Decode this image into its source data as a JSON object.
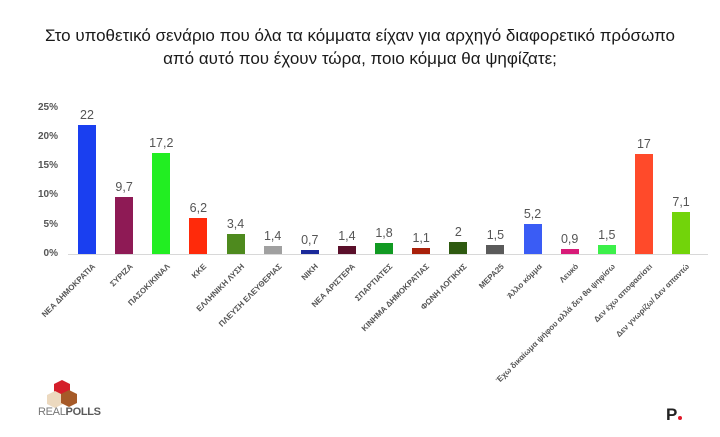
{
  "title": {
    "line1": "Στο υποθετικό σενάριο που όλα τα κόμματα είχαν για αρχηγό διαφορετικό πρόσωπο",
    "line2": "από αυτό που έχουν τώρα, ποιο κόμμα θα ψηφίζατε;"
  },
  "logos": {
    "left": "REALPOLLS",
    "left_a": "REAL",
    "left_b": "POLLS",
    "right": "P"
  },
  "chart_data": {
    "type": "bar",
    "title": "Στο υποθετικό σενάριο που όλα τα κόμματα είχαν για αρχηγό διαφορετικό πρόσωπο από αυτό που έχουν τώρα, ποιο κόμμα θα ψηφίζατε;",
    "xlabel": "",
    "ylabel": "",
    "ylim": [
      0,
      25
    ],
    "yticks": [
      "0%",
      "5%",
      "10%",
      "15%",
      "20%",
      "25%"
    ],
    "grid": false,
    "legend": "none",
    "categories": [
      "ΝΕΑ ΔΗΜΟΚΡΑΤΙΑ",
      "ΣΥΡΙΖΑ",
      "ΠΑΣΟΚ/ΚΙΝΑΛ",
      "ΚΚΕ",
      "ΕΛΛΗΝΙΚΗ ΛΥΣΗ",
      "ΠΛΕΥΣΗ ΕΛΕΥΘΕΡΙΑΣ",
      "ΝΙΚΗ",
      "ΝΕΑ ΑΡΙΣΤΕΡΑ",
      "ΣΠΑΡΤΙΑΤΕΣ",
      "ΚΙΝΗΜΑ ΔΗΜΟΚΡΑΤΙΑΣ",
      "ΦΩΝΗ ΛΟΓΙΚΗΣ",
      "ΜΕΡΑ25",
      "Άλλο κόμμα",
      "Λευκό",
      "Έχω δικαίωμα ψήφου αλλά δεν θα ψηφίσω",
      "Δεν έχω αποφασίσει",
      "Δεν γνωρίζω/ Δεν απαντώ"
    ],
    "values": [
      22,
      9.7,
      17.2,
      6.2,
      3.4,
      1.4,
      0.7,
      1.4,
      1.8,
      1.1,
      2,
      1.5,
      5.2,
      0.9,
      1.5,
      17,
      7.1
    ],
    "value_labels": [
      "22",
      "9,7",
      "17,2",
      "6,2",
      "3,4",
      "1,4",
      "0,7",
      "1,4",
      "1,8",
      "1,1",
      "2",
      "1,5",
      "5,2",
      "0,9",
      "1,5",
      "17",
      "7,1"
    ],
    "colors": [
      "#1a3ff0",
      "#8e1a55",
      "#22ee22",
      "#ff2a0a",
      "#4e8a1e",
      "#a0a0a0",
      "#1a2a9a",
      "#5a0f2a",
      "#119a22",
      "#a8200a",
      "#2e5a10",
      "#5a5a5a",
      "#3a5cf5",
      "#d81a78",
      "#3cf04a",
      "#ff4a2a",
      "#72d40a"
    ]
  }
}
